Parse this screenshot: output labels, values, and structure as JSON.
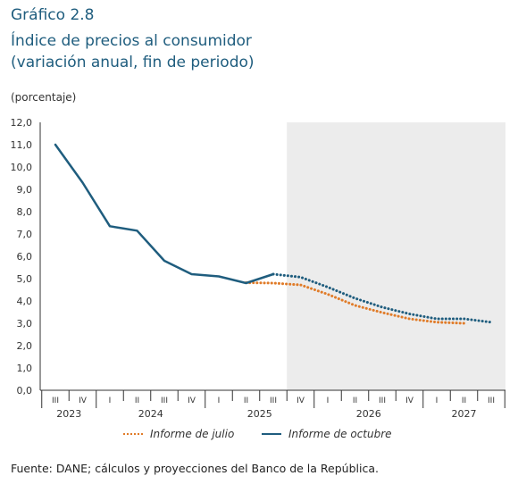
{
  "header": {
    "chart_number": "Gráfico 2.8",
    "title": "Índice de precios al consumidor",
    "subtitle": "(variación anual, fin de periodo)",
    "unit": "(porcentaje)"
  },
  "source": "Fuente: DANE; cálculos y proyecciones del Banco de la República.",
  "colors": {
    "julio": "#e07b28",
    "octubre": "#1f5d7e",
    "forecast_band": "#ececec",
    "axis": "#333333"
  },
  "chart_data": {
    "type": "line",
    "title": "Índice de precios al consumidor",
    "subtitle": "(variación anual, fin de periodo)",
    "ylabel": "(porcentaje)",
    "ylim": [
      0,
      12
    ],
    "yticks": [
      "0,0",
      "1,0",
      "2,0",
      "3,0",
      "4,0",
      "5,0",
      "6,0",
      "7,0",
      "8,0",
      "9,0",
      "10,0",
      "11,0",
      "12,0"
    ],
    "quarters": [
      "III",
      "IV",
      "I",
      "II",
      "III",
      "IV",
      "I",
      "II",
      "III",
      "IV",
      "I",
      "II",
      "III",
      "IV",
      "I",
      "II",
      "III"
    ],
    "years": [
      {
        "label": "2023",
        "start": 0,
        "end": 1
      },
      {
        "label": "2024",
        "start": 2,
        "end": 5
      },
      {
        "label": "2025",
        "start": 6,
        "end": 9
      },
      {
        "label": "2026",
        "start": 10,
        "end": 13
      },
      {
        "label": "2027",
        "start": 14,
        "end": 16
      }
    ],
    "forecast_start_index": 8.5,
    "grid": false,
    "legend_position": "bottom",
    "series": [
      {
        "name": "Informe de julio",
        "style": "dotted",
        "values": [
          [
            7.0,
            4.82
          ],
          [
            8.0,
            4.8
          ],
          [
            9.0,
            4.72
          ],
          [
            10.0,
            4.3
          ],
          [
            11.0,
            3.8
          ],
          [
            12.0,
            3.48
          ],
          [
            13.0,
            3.2
          ],
          [
            14.0,
            3.05
          ],
          [
            15.0,
            3.0
          ]
        ]
      },
      {
        "name": "Informe de octubre",
        "style": "solid",
        "values": [
          [
            0,
            11.0
          ],
          [
            1,
            9.3
          ],
          [
            2,
            7.35
          ],
          [
            3,
            7.15
          ],
          [
            4,
            5.8
          ],
          [
            5,
            5.2
          ],
          [
            6,
            5.1
          ],
          [
            7,
            4.8
          ],
          [
            8,
            5.2
          ]
        ]
      },
      {
        "name": "Informe de octubre proyección",
        "style": "dotted",
        "values": [
          [
            8,
            5.2
          ],
          [
            9,
            5.07
          ],
          [
            10,
            4.62
          ],
          [
            11,
            4.12
          ],
          [
            12,
            3.72
          ],
          [
            13,
            3.42
          ],
          [
            14,
            3.2
          ],
          [
            15,
            3.2
          ],
          [
            16,
            3.05
          ]
        ]
      }
    ]
  },
  "legend": {
    "julio_label": "Informe de julio",
    "octubre_label": "Informe de octubre"
  }
}
